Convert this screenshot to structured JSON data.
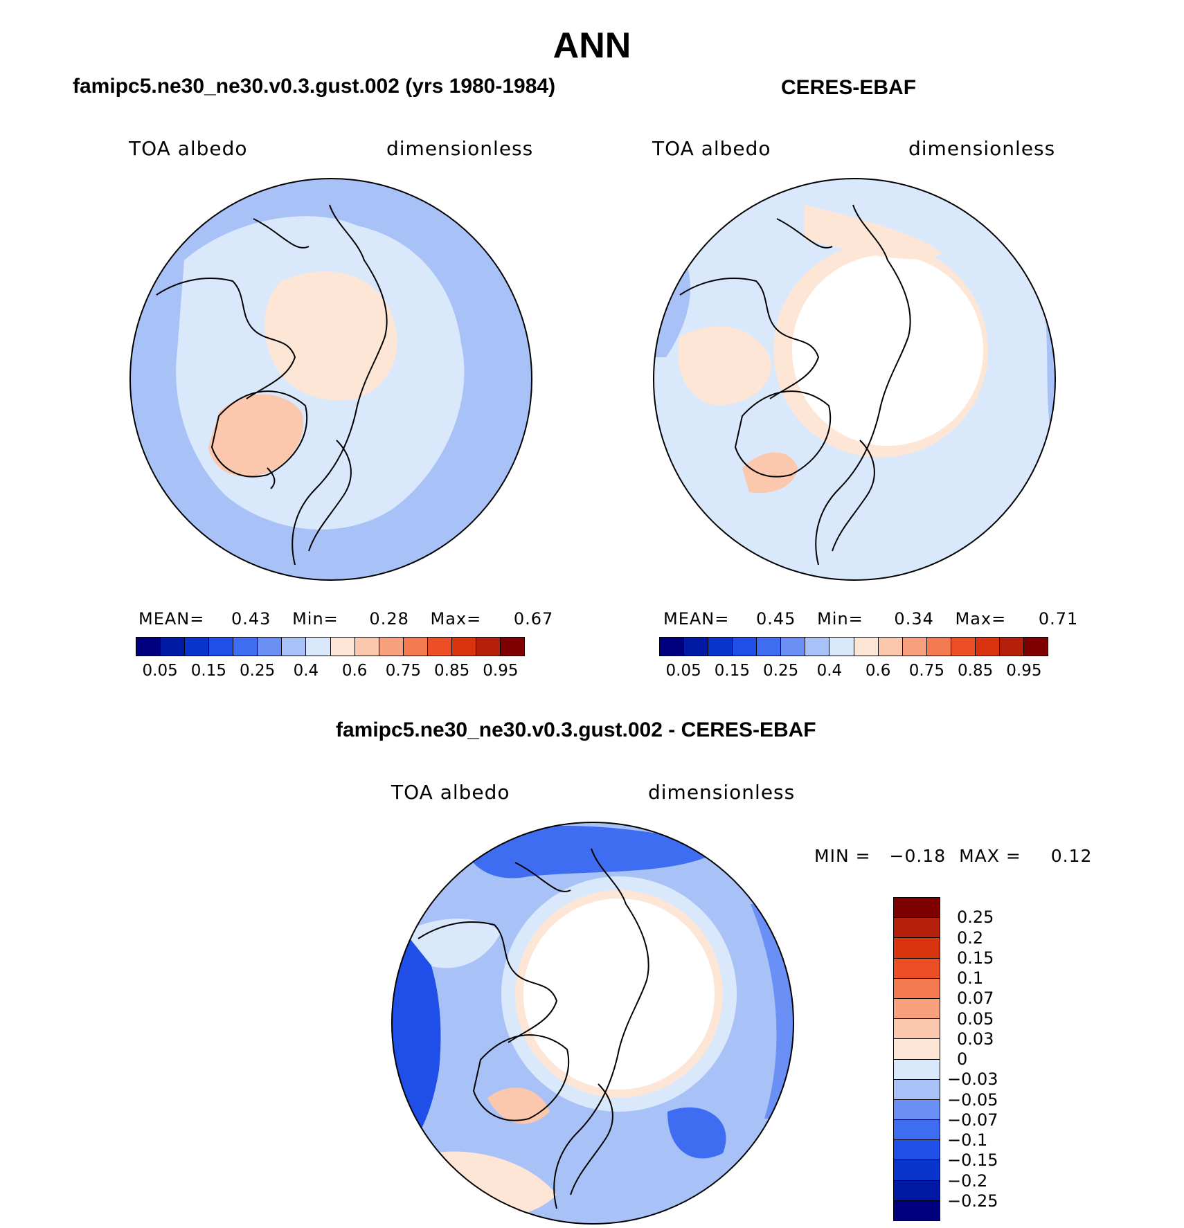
{
  "title": "ANN",
  "panels": {
    "model": {
      "title": "famipc5.ne30_ne30.v0.3.gust.002 (yrs 1980-1984)",
      "variable": "TOA albedo",
      "units": "dimensionless",
      "stats": {
        "mean_label": "MEAN=",
        "mean": "0.43",
        "min_label": "Min=",
        "min": "0.28",
        "max_label": "Max=",
        "max": "0.67"
      }
    },
    "obs": {
      "title": "CERES-EBAF",
      "variable": "TOA albedo",
      "units": "dimensionless",
      "stats": {
        "mean_label": "MEAN=",
        "mean": "0.45",
        "min_label": "Min=",
        "min": "0.34",
        "max_label": "Max=",
        "max": "0.71"
      }
    },
    "diff": {
      "title": "famipc5.ne30_ne30.v0.3.gust.002 - CERES-EBAF",
      "variable": "TOA albedo",
      "units": "dimensionless",
      "stats": {
        "min_label": "MIN =",
        "min": "−0.18",
        "max_label": "MAX =",
        "max": "0.12"
      }
    }
  },
  "colorbar_abs": {
    "colors": [
      "#00007f",
      "#001aa6",
      "#0a35cc",
      "#1f4fe8",
      "#3f6df2",
      "#6a8ff5",
      "#a8c1f7",
      "#d9e8fb",
      "#fde6d6",
      "#fbc7ad",
      "#f8a17f",
      "#f47a52",
      "#ec4f26",
      "#d9330f",
      "#b4200b",
      "#7f0000"
    ],
    "tick_labels": [
      "0.05",
      "0.15",
      "0.25",
      "0.4",
      "0.6",
      "0.75",
      "0.85",
      "0.95"
    ]
  },
  "colorbar_diff": {
    "colors": [
      "#7f0000",
      "#b4200b",
      "#d9330f",
      "#ec4f26",
      "#f47a52",
      "#f8a17f",
      "#fbc7ad",
      "#fde6d6",
      "#d9e8fb",
      "#a8c1f7",
      "#6a8ff5",
      "#3f6df2",
      "#1f4fe8",
      "#0a35cc",
      "#001aa6",
      "#00007f"
    ],
    "tick_labels": [
      "0.25",
      "0.2",
      "0.15",
      "0.1",
      "0.07",
      "0.05",
      "0.03",
      "0",
      "−0.03",
      "−0.05",
      "−0.07",
      "−0.1",
      "−0.15",
      "−0.2",
      "−0.25"
    ]
  }
}
